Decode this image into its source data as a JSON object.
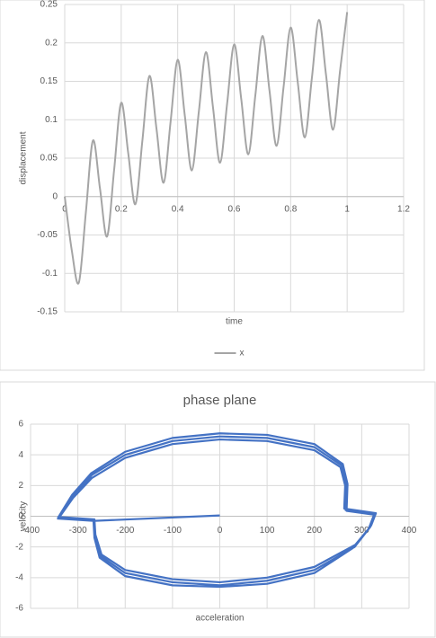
{
  "chart_data": [
    {
      "type": "line",
      "xlabel": "time",
      "ylabel": "displacement",
      "x": [
        0,
        0.025,
        0.05,
        0.075,
        0.1,
        0.125,
        0.15,
        0.175,
        0.2,
        0.225,
        0.25,
        0.275,
        0.3,
        0.325,
        0.35,
        0.375,
        0.4,
        0.425,
        0.45,
        0.475,
        0.5,
        0.525,
        0.55,
        0.575,
        0.6,
        0.625,
        0.65,
        0.675,
        0.7,
        0.725,
        0.75,
        0.775,
        0.8,
        0.825,
        0.85,
        0.875,
        0.9,
        0.925,
        0.95,
        0.975,
        1.0
      ],
      "series": [
        {
          "name": "x",
          "color": "#a5a5a5",
          "values": [
            0,
            -0.07,
            -0.112,
            -0.02,
            0.073,
            0.01,
            -0.052,
            0.035,
            0.122,
            0.056,
            -0.01,
            0.073,
            0.157,
            0.088,
            0.018,
            0.098,
            0.178,
            0.106,
            0.034,
            0.111,
            0.188,
            0.116,
            0.044,
            0.121,
            0.198,
            0.127,
            0.055,
            0.132,
            0.209,
            0.138,
            0.066,
            0.143,
            0.22,
            0.149,
            0.077,
            0.154,
            0.23,
            0.159,
            0.087,
            0.164,
            0.24
          ]
        }
      ],
      "xlim": [
        0,
        1.2
      ],
      "xticks": [
        0,
        0.2,
        0.4,
        0.6,
        0.8,
        1,
        1.2
      ],
      "ylim": [
        -0.15,
        0.25
      ],
      "yticks": [
        -0.15,
        -0.1,
        -0.05,
        0,
        0.05,
        0.1,
        0.15,
        0.2,
        0.25
      ],
      "grid": true,
      "smooth": true,
      "legend": "bottom"
    },
    {
      "type": "scatter",
      "title": "phase plane",
      "xlabel": "acceleration",
      "ylabel": "velocity",
      "x": [
        0,
        -265,
        -340,
        -310,
        -270,
        -200,
        -100,
        0,
        100,
        200,
        255,
        265,
        263,
        330,
        320,
        290,
        200,
        100,
        0,
        -100,
        -200,
        -250,
        -263,
        -265,
        -340,
        -310,
        -270,
        -200,
        -100,
        0,
        100,
        200,
        258,
        268,
        266,
        328,
        318,
        285,
        200,
        100,
        0,
        -100,
        -200,
        -252,
        -264,
        -266,
        -342,
        -312,
        -272,
        -200,
        -100,
        0,
        100,
        200,
        260,
        270,
        268,
        326,
        315,
        280,
        200,
        100,
        0,
        -100,
        -200,
        -254,
        -265,
        -267,
        -344
      ],
      "series": [
        {
          "color": "#4472c4",
          "values": [
            0.05,
            -0.3,
            -0.1,
            1.2,
            2.5,
            3.8,
            4.7,
            5.0,
            4.9,
            4.3,
            3.2,
            2.0,
            0.5,
            0.2,
            -0.6,
            -1.8,
            -3.3,
            -4.0,
            -4.3,
            -4.1,
            -3.5,
            -2.5,
            -1.2,
            -0.2,
            -0.05,
            1.3,
            2.7,
            4.0,
            4.9,
            5.2,
            5.1,
            4.5,
            3.3,
            2.0,
            0.4,
            0.15,
            -0.7,
            -2.0,
            -3.5,
            -4.2,
            -4.5,
            -4.3,
            -3.7,
            -2.6,
            -1.3,
            -0.25,
            -0.1,
            1.4,
            2.8,
            4.2,
            5.1,
            5.4,
            5.3,
            4.7,
            3.4,
            2.1,
            0.35,
            0.1,
            -0.8,
            -2.1,
            -3.7,
            -4.4,
            -4.6,
            -4.5,
            -3.9,
            -2.7,
            -1.4,
            -0.3,
            -0.15
          ]
        }
      ],
      "xlim": [
        -400,
        400
      ],
      "xticks": [
        -400,
        -300,
        -200,
        -100,
        0,
        100,
        200,
        300,
        400
      ],
      "ylim": [
        -6,
        6
      ],
      "yticks": [
        -6,
        -4,
        -2,
        0,
        2,
        4,
        6
      ],
      "grid": true,
      "smooth": false
    }
  ]
}
